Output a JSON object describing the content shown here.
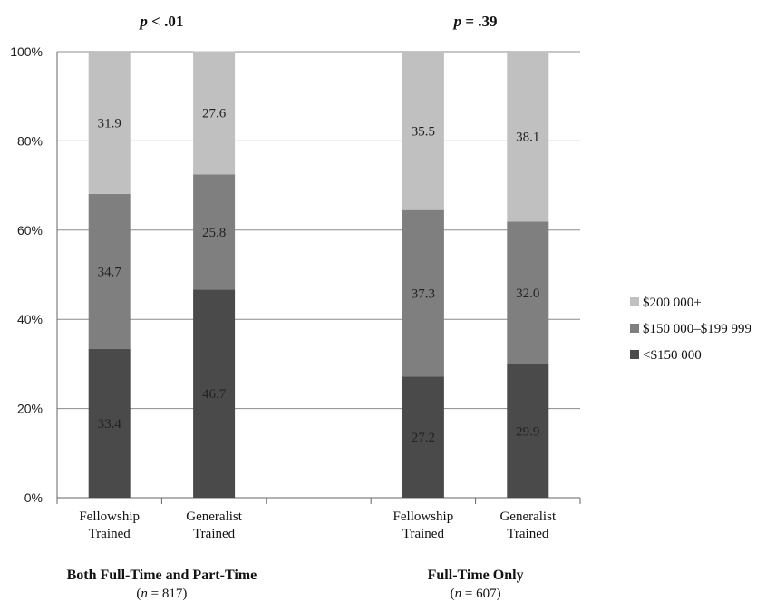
{
  "chart_data": {
    "type": "bar",
    "stacked": true,
    "ylim": [
      0,
      100
    ],
    "yticks": [
      "0%",
      "20%",
      "40%",
      "60%",
      "80%",
      "100%"
    ],
    "categories": [
      {
        "line1": "Fellowship",
        "line2": "Trained"
      },
      {
        "line1": "Generalist",
        "line2": "Trained"
      },
      {
        "line1": "Fellowship",
        "line2": "Trained"
      },
      {
        "line1": "Generalist",
        "line2": "Trained"
      }
    ],
    "series": [
      {
        "name": "<$150 000",
        "color": "#4a4a4a",
        "values": [
          33.4,
          46.7,
          27.2,
          29.9
        ],
        "labels": [
          "33.4",
          "46.7",
          "27.2",
          "29.9"
        ]
      },
      {
        "name": "$150 000–$199 999",
        "color": "#7f7f7f",
        "values": [
          34.7,
          25.8,
          37.3,
          32.0
        ],
        "labels": [
          "34.7",
          "25.8",
          "37.3",
          "32.0"
        ]
      },
      {
        "name": "$200 000+",
        "color": "#c0c0c0",
        "values": [
          31.9,
          27.6,
          35.5,
          38.1
        ],
        "labels": [
          "31.9",
          "27.6",
          "35.5",
          "38.1"
        ]
      }
    ],
    "groups": [
      {
        "title": "Both Full-Time and Part-Time",
        "n_sym": "n",
        "n_text": " = 817",
        "p_sym": "p",
        "p_text": " < .01"
      },
      {
        "title": "Full-Time Only",
        "n_sym": "n",
        "n_text": " = 607",
        "p_sym": "p",
        "p_text": " = .39"
      }
    ],
    "legend": {
      "placement": "right",
      "items": [
        "$200 000+",
        "$150 000–$199 999",
        "<$150 000"
      ]
    },
    "grid": true
  }
}
